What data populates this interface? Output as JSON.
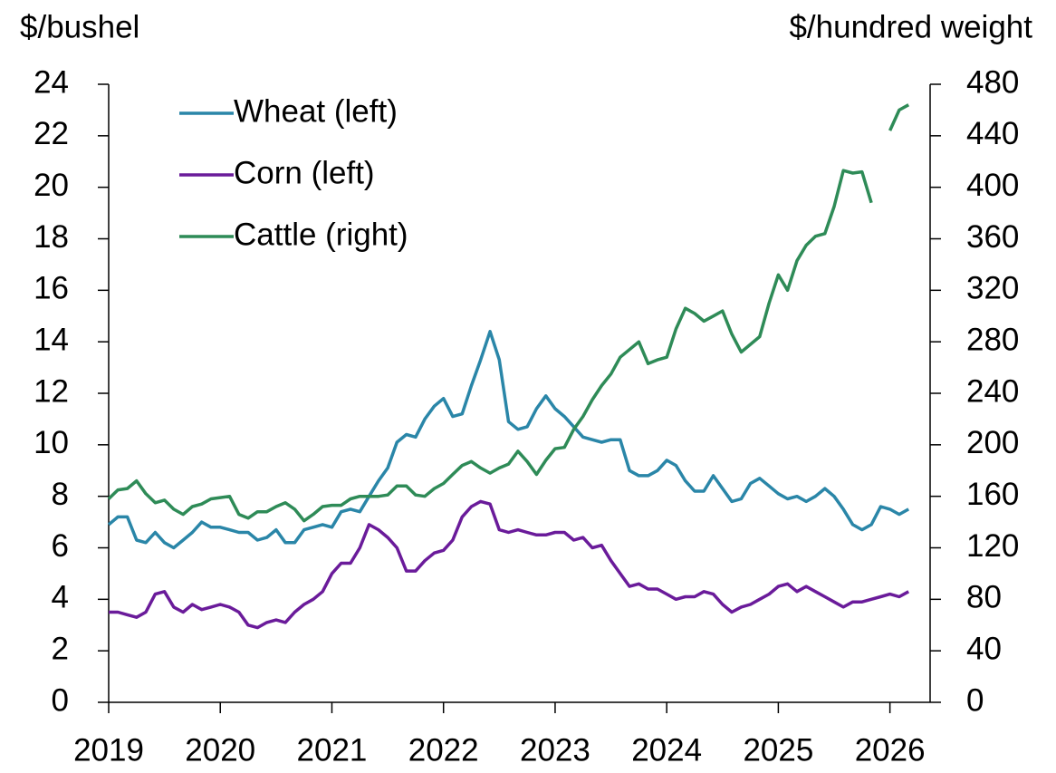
{
  "chart_data": {
    "type": "line",
    "y_label": "$/bushel",
    "y2_label": "$/hundred weight",
    "x": [
      2019,
      2019.083,
      2019.167,
      2019.25,
      2019.333,
      2019.417,
      2019.5,
      2019.583,
      2019.667,
      2019.75,
      2019.833,
      2019.917,
      2020,
      2020.083,
      2020.167,
      2020.25,
      2020.333,
      2020.417,
      2020.5,
      2020.583,
      2020.667,
      2020.75,
      2020.833,
      2020.917,
      2021,
      2021.083,
      2021.167,
      2021.25,
      2021.333,
      2021.417,
      2021.5,
      2021.583,
      2021.667,
      2021.75,
      2021.833,
      2021.917,
      2022,
      2022.083,
      2022.167,
      2022.25,
      2022.333,
      2022.417,
      2022.5,
      2022.583,
      2022.667,
      2022.75,
      2022.833,
      2022.917,
      2023,
      2023.083,
      2023.167,
      2023.25,
      2023.333,
      2023.417,
      2023.5,
      2023.583,
      2023.667,
      2023.75,
      2023.833,
      2023.917,
      2024,
      2024.083,
      2024.167,
      2024.25,
      2024.333,
      2024.417,
      2024.5,
      2024.583,
      2024.667,
      2024.75,
      2024.833,
      2024.917,
      2025,
      2025.083,
      2025.167,
      2025.25,
      2025.333,
      2025.417,
      2025.5,
      2025.583,
      2025.667,
      2025.75,
      2025.833,
      2025.917,
      2026,
      2026.083,
      2026.167
    ],
    "series": [
      {
        "name": "Wheat (left)",
        "color": "#2a86a8",
        "axis": "y",
        "values": [
          6.9,
          7.2,
          7.2,
          6.3,
          6.2,
          6.6,
          6.2,
          6.0,
          6.3,
          6.6,
          7.0,
          6.8,
          6.8,
          6.7,
          6.6,
          6.6,
          6.3,
          6.4,
          6.7,
          6.2,
          6.2,
          6.7,
          6.8,
          6.9,
          6.8,
          7.4,
          7.5,
          7.4,
          8.0,
          8.6,
          9.1,
          10.1,
          10.4,
          10.3,
          11.0,
          11.5,
          11.8,
          11.1,
          11.2,
          12.3,
          13.3,
          14.4,
          13.3,
          10.9,
          10.6,
          10.7,
          11.4,
          11.9,
          11.4,
          11.1,
          10.7,
          10.3,
          10.2,
          10.1,
          10.2,
          10.2,
          9.0,
          8.8,
          8.8,
          9.0,
          9.4,
          9.2,
          8.6,
          8.2,
          8.2,
          8.8,
          8.3,
          7.8,
          7.9,
          8.5,
          8.7,
          8.4,
          8.1,
          7.9,
          8.0,
          7.8,
          8.0,
          8.3,
          8.0,
          7.5,
          6.9,
          6.7,
          6.9,
          7.6,
          7.5,
          7.3,
          7.5
        ]
      },
      {
        "name": "Corn (left)",
        "color": "#6a1b9a",
        "axis": "y",
        "values": [
          3.5,
          3.5,
          3.4,
          3.3,
          3.5,
          4.2,
          4.3,
          3.7,
          3.5,
          3.8,
          3.6,
          3.7,
          3.8,
          3.7,
          3.5,
          3.0,
          2.9,
          3.1,
          3.2,
          3.1,
          3.5,
          3.8,
          4.0,
          4.3,
          5.0,
          5.4,
          5.4,
          6.0,
          6.9,
          6.7,
          6.4,
          6.0,
          5.1,
          5.1,
          5.5,
          5.8,
          5.9,
          6.3,
          7.2,
          7.6,
          7.8,
          7.7,
          6.7,
          6.6,
          6.7,
          6.6,
          6.5,
          6.5,
          6.6,
          6.6,
          6.3,
          6.4,
          6.0,
          6.1,
          5.5,
          5.0,
          4.5,
          4.6,
          4.4,
          4.4,
          4.2,
          4.0,
          4.1,
          4.1,
          4.3,
          4.2,
          3.8,
          3.5,
          3.7,
          3.8,
          4.0,
          4.2,
          4.5,
          4.6,
          4.3,
          4.5,
          4.3,
          4.1,
          3.9,
          3.7,
          3.9,
          3.9,
          4.0,
          4.1,
          4.2,
          4.1,
          4.3
        ]
      },
      {
        "name": "Cattle (right)",
        "color": "#2e8b57",
        "axis": "y2",
        "values": [
          158,
          165,
          166,
          172,
          162,
          155,
          157,
          150,
          146,
          152,
          154,
          158,
          159,
          160,
          146,
          143,
          148,
          148,
          152,
          155,
          150,
          141,
          146,
          152,
          153,
          153,
          158,
          160,
          160,
          160,
          161,
          168,
          168,
          161,
          160,
          166,
          170,
          177,
          184,
          187,
          182,
          178,
          182,
          185,
          195,
          187,
          177,
          188,
          197,
          198,
          212,
          222,
          235,
          246,
          255,
          268,
          274,
          280,
          263,
          266,
          268,
          290,
          306,
          302,
          296,
          300,
          304,
          286,
          272,
          278,
          284,
          310,
          332,
          320,
          343,
          355,
          362,
          364,
          385,
          413,
          411,
          412,
          388,
          null,
          444,
          460,
          464
        ]
      }
    ],
    "xlim": [
      2019,
      2026.36
    ],
    "xticks": [
      2019,
      2020,
      2021,
      2022,
      2023,
      2024,
      2025,
      2026
    ],
    "ylim": [
      0,
      24
    ],
    "yticks": [
      0,
      2,
      4,
      6,
      8,
      10,
      12,
      14,
      16,
      18,
      20,
      22,
      24
    ],
    "y2lim": [
      0,
      480
    ],
    "y2ticks": [
      0,
      40,
      80,
      120,
      160,
      200,
      240,
      280,
      320,
      360,
      400,
      440,
      480
    ],
    "grid": false,
    "legend": "upper left"
  }
}
